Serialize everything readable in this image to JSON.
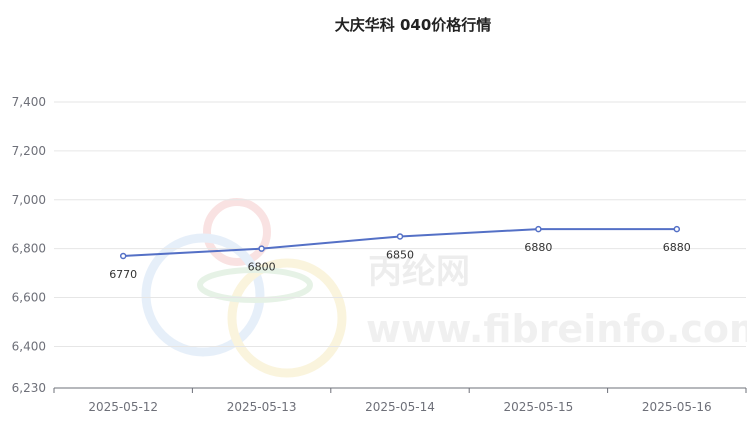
{
  "title": "大庆华科 040价格行情",
  "watermark": {
    "cn": "丙纶网",
    "url": "www.fibreinfo.com"
  },
  "colors": {
    "line": "#5470c6",
    "grid": "#e6e6e6",
    "axis": "#6e7079",
    "label": "#333333"
  },
  "chart_data": {
    "type": "line",
    "title": "大庆华科 040价格行情",
    "xlabel": "",
    "ylabel": "",
    "categories": [
      "2025-05-12",
      "2025-05-13",
      "2025-05-14",
      "2025-05-15",
      "2025-05-16"
    ],
    "series": [
      {
        "values": [
          6770,
          6800,
          6850,
          6880,
          6880
        ]
      }
    ],
    "data_labels": [
      "6770",
      "6800",
      "6850",
      "6880",
      "6880"
    ],
    "ylim": [
      6230,
      7400
    ],
    "yticks": [
      6230,
      6400,
      6600,
      6800,
      7000,
      7200,
      7400
    ],
    "ytick_labels": [
      "6,230",
      "6,400",
      "6,600",
      "6,800",
      "7,000",
      "7,200",
      "7,400"
    ],
    "grid": true,
    "legend": "none"
  }
}
